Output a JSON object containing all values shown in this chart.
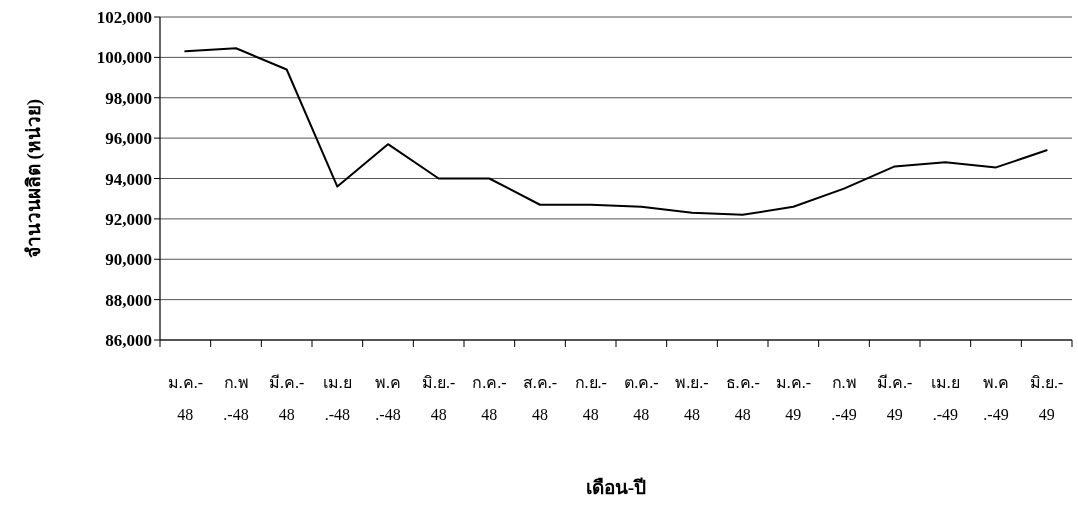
{
  "chart_data": {
    "type": "line",
    "xlabel": "เดือน-ปี",
    "ylabel": "จำนวนผลิต (หน่วย)",
    "categories": [
      "ม.ค.-\n48",
      "ก.พ\n.-48",
      "มี.ค.-\n48",
      "เม.ย\n.-48",
      "พ.ค\n.-48",
      "มิ.ย.-\n48",
      "ก.ค.-\n48",
      "ส.ค.-\n48",
      "ก.ย.-\n48",
      "ต.ค.-\n48",
      "พ.ย.-\n48",
      "ธ.ค.-\n48",
      "ม.ค.-\n49",
      "ก.พ\n.-49",
      "มี.ค.-\n49",
      "เม.ย\n.-49",
      "พ.ค\n.-49",
      "มิ.ย.-\n49"
    ],
    "series": [
      {
        "color": "#000000",
        "values": [
          100300,
          100450,
          99400,
          93600,
          95700,
          94000,
          94000,
          92700,
          92700,
          92600,
          92300,
          92200,
          92600,
          93500,
          94600,
          94800,
          94550,
          95400
        ]
      }
    ],
    "ylim": [
      86000,
      102000
    ],
    "yticks": [
      {
        "value": 86000,
        "label": "86,000"
      },
      {
        "value": 88000,
        "label": "88,000"
      },
      {
        "value": 90000,
        "label": "90,000"
      },
      {
        "value": 92000,
        "label": "92,000"
      },
      {
        "value": 94000,
        "label": "94,000"
      },
      {
        "value": 96000,
        "label": "96,000"
      },
      {
        "value": 98000,
        "label": "98,000"
      },
      {
        "value": 100000,
        "label": "100,000"
      },
      {
        "value": 102000,
        "label": "102,000"
      }
    ],
    "grid": "y",
    "marker": "none",
    "line_style": "solid"
  }
}
